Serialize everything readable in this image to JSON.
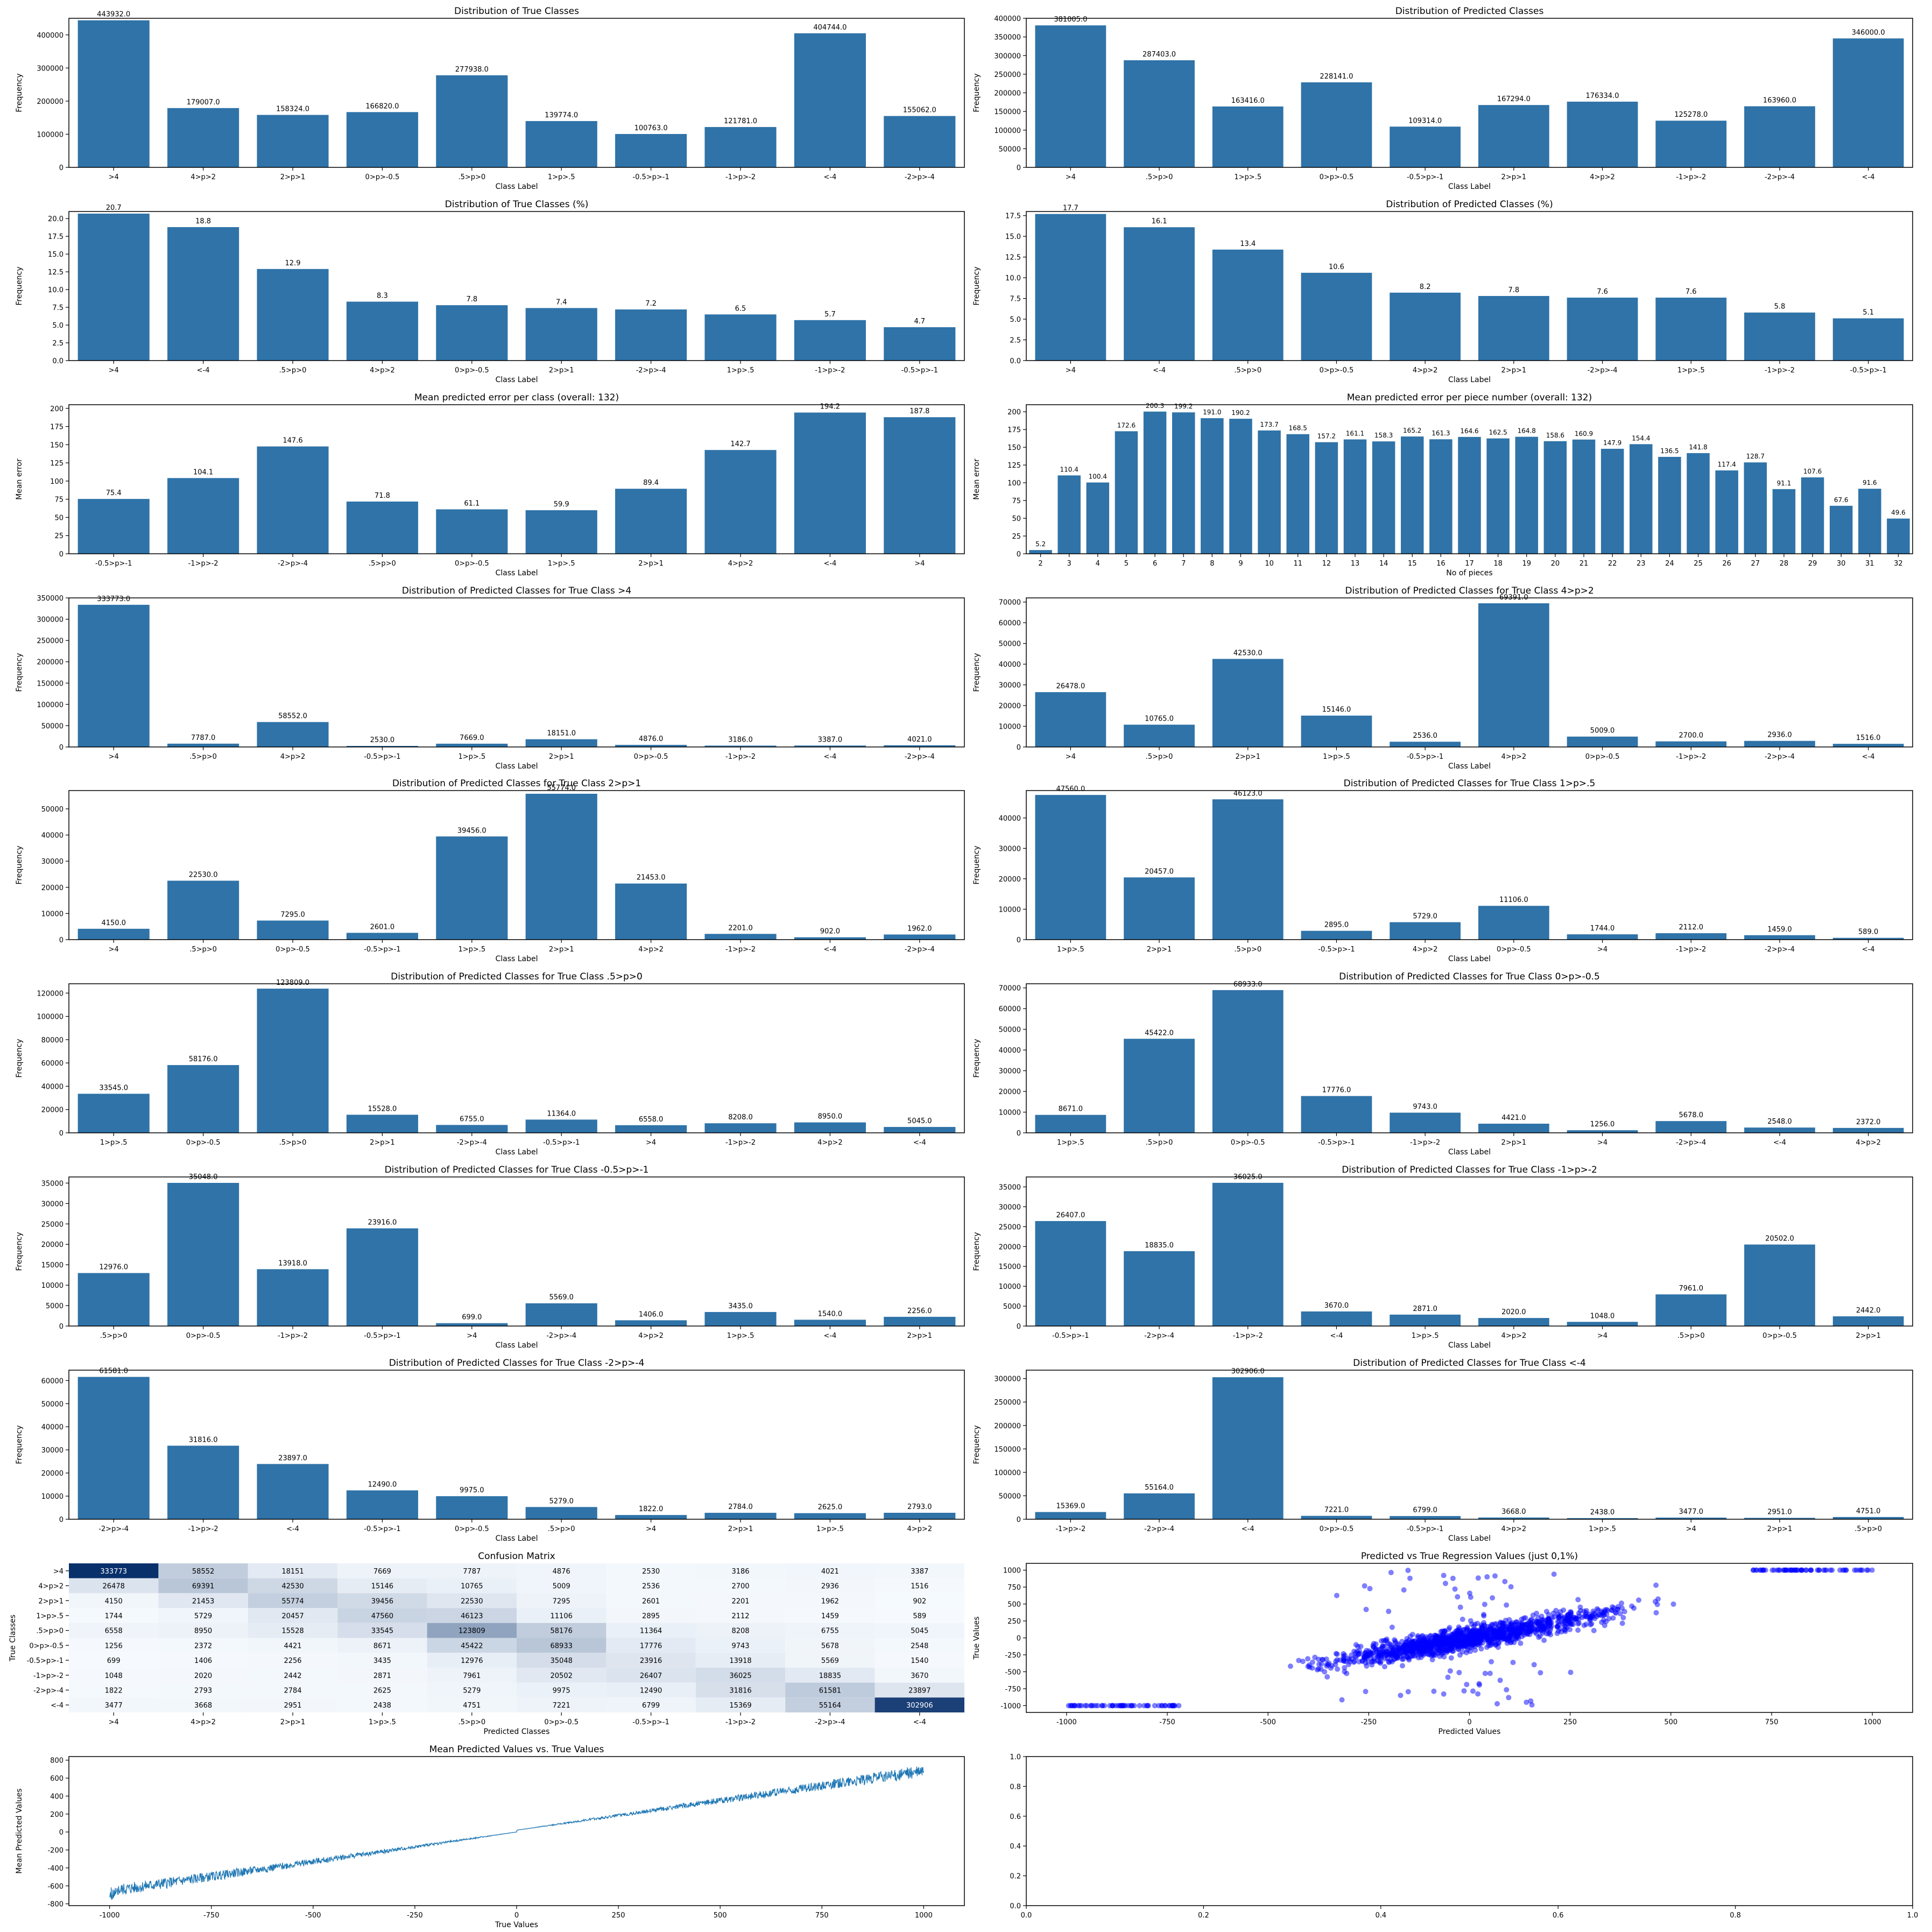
{
  "style": {
    "bar_color": "#2f73a8",
    "line_color": "#1f77b4",
    "scatter_color": "#0000ff",
    "heat_low": "#f7fbff",
    "heat_high": "#08306b"
  },
  "chart_data": [
    {
      "id": "c1",
      "type": "bar",
      "title": "Distribution of True Classes",
      "xlabel": "Class Label",
      "ylabel": "Frequency",
      "categories": [
        ">4",
        "4>p>2",
        "2>p>1",
        "0>p>-0.5",
        ".5>p>0",
        "1>p>.5",
        "-0.5>p>-1",
        "-1>p>-2",
        "<-4",
        "-2>p>-4"
      ],
      "values": [
        443932,
        179007,
        158324,
        166820,
        277938,
        139774,
        100763,
        121781,
        404744,
        155062
      ],
      "ylim": [
        0,
        450000
      ],
      "yticks": [
        0,
        100000,
        200000,
        300000,
        400000
      ],
      "value_labels": "dec"
    },
    {
      "id": "c2",
      "type": "bar",
      "title": "Distribution of Predicted Classes",
      "xlabel": "Class Label",
      "ylabel": "Frequency",
      "categories": [
        ">4",
        ".5>p>0",
        "1>p>.5",
        "0>p>-0.5",
        "-0.5>p>-1",
        "2>p>1",
        "4>p>2",
        "-1>p>-2",
        "-2>p>-4",
        "<-4"
      ],
      "values": [
        381005,
        287403,
        163416,
        228141,
        109314,
        167294,
        176334,
        125278,
        163960,
        346000
      ],
      "ylim": [
        0,
        400000
      ],
      "yticks": [
        0,
        50000,
        100000,
        150000,
        200000,
        250000,
        300000,
        350000,
        400000
      ],
      "value_labels": "dec"
    },
    {
      "id": "c3",
      "type": "bar",
      "title": "Distribution of True Classes (%)",
      "xlabel": "Class Label",
      "ylabel": "Frequency",
      "categories": [
        ">4",
        "<-4",
        ".5>p>0",
        "4>p>2",
        "0>p>-0.5",
        "2>p>1",
        "-2>p>-4",
        "1>p>.5",
        "-1>p>-2",
        "-0.5>p>-1"
      ],
      "values": [
        20.7,
        18.8,
        12.9,
        8.3,
        7.8,
        7.4,
        7.2,
        6.5,
        5.7,
        4.7
      ],
      "ylim": [
        0,
        21
      ],
      "yticks": [
        0.0,
        2.5,
        5.0,
        7.5,
        10.0,
        12.5,
        15.0,
        17.5,
        20.0
      ],
      "value_labels": "one"
    },
    {
      "id": "c4",
      "type": "bar",
      "title": "Distribution of Predicted Classes (%)",
      "xlabel": "Class Label",
      "ylabel": "Frequency",
      "categories": [
        ">4",
        "<-4",
        ".5>p>0",
        "0>p>-0.5",
        "4>p>2",
        "2>p>1",
        "-2>p>-4",
        "1>p>.5",
        "-1>p>-2",
        "-0.5>p>-1"
      ],
      "values": [
        17.7,
        16.1,
        13.4,
        10.6,
        8.2,
        7.8,
        7.6,
        7.6,
        5.8,
        5.1
      ],
      "ylim": [
        0,
        18
      ],
      "yticks": [
        0.0,
        2.5,
        5.0,
        7.5,
        10.0,
        12.5,
        15.0,
        17.5
      ],
      "value_labels": "one"
    },
    {
      "id": "c5",
      "type": "bar",
      "title": "Mean predicted error per class (overall: 132)",
      "xlabel": "Class Label",
      "ylabel": "Mean error",
      "categories": [
        "-0.5>p>-1",
        "-1>p>-2",
        "-2>p>-4",
        ".5>p>0",
        "0>p>-0.5",
        "1>p>.5",
        "2>p>1",
        "4>p>2",
        "<-4",
        ">4"
      ],
      "values": [
        75.4,
        104.1,
        147.6,
        71.8,
        61.1,
        59.9,
        89.4,
        142.7,
        194.2,
        187.8
      ],
      "ylim": [
        0,
        205
      ],
      "yticks": [
        0,
        25,
        50,
        75,
        100,
        125,
        150,
        175,
        200
      ],
      "value_labels": "one"
    },
    {
      "id": "c6",
      "type": "bar",
      "title": "Mean predicted error per piece number (overall: 132)",
      "xlabel": "No of pieces",
      "ylabel": "Mean error",
      "categories": [
        "2",
        "3",
        "4",
        "5",
        "6",
        "7",
        "8",
        "9",
        "10",
        "11",
        "12",
        "13",
        "14",
        "15",
        "16",
        "17",
        "18",
        "19",
        "20",
        "21",
        "22",
        "23",
        "24",
        "25",
        "26",
        "27",
        "28",
        "29",
        "30",
        "31",
        "32"
      ],
      "values": [
        5.2,
        110.4,
        100.4,
        172.6,
        200.3,
        199.2,
        191.0,
        190.2,
        173.7,
        168.5,
        157.2,
        161.1,
        158.3,
        165.2,
        161.3,
        164.6,
        162.5,
        164.8,
        158.6,
        160.9,
        147.9,
        154.4,
        136.5,
        141.8,
        117.4,
        128.7,
        91.1,
        107.6,
        67.6,
        91.6,
        49.6
      ],
      "ylim": [
        0,
        210
      ],
      "yticks": [
        0,
        25,
        50,
        75,
        100,
        125,
        150,
        175,
        200
      ],
      "value_labels": "one"
    },
    {
      "id": "c7",
      "type": "bar",
      "title": "Distribution of Predicted Classes for True Class >4",
      "xlabel": "Class Label",
      "ylabel": "Frequency",
      "categories": [
        ">4",
        ".5>p>0",
        "4>p>2",
        "-0.5>p>-1",
        "1>p>.5",
        "2>p>1",
        "0>p>-0.5",
        "-1>p>-2",
        "<-4",
        "-2>p>-4"
      ],
      "values": [
        333773,
        7787,
        58552,
        2530,
        7669,
        18151,
        4876,
        3186,
        3387,
        4021
      ],
      "ylim": [
        0,
        350000
      ],
      "yticks": [
        0,
        50000,
        100000,
        150000,
        200000,
        250000,
        300000,
        350000
      ],
      "value_labels": "dec"
    },
    {
      "id": "c8",
      "type": "bar",
      "title": "Distribution of Predicted Classes for True Class 4>p>2",
      "xlabel": "Class Label",
      "ylabel": "Frequency",
      "categories": [
        ">4",
        ".5>p>0",
        "2>p>1",
        "1>p>.5",
        "-0.5>p>-1",
        "4>p>2",
        "0>p>-0.5",
        "-1>p>-2",
        "-2>p>-4",
        "<-4"
      ],
      "values": [
        26478,
        10765,
        42530,
        15146,
        2536,
        69391,
        5009,
        2700,
        2936,
        1516
      ],
      "ylim": [
        0,
        72000
      ],
      "yticks": [
        0,
        10000,
        20000,
        30000,
        40000,
        50000,
        60000,
        70000
      ],
      "value_labels": "dec"
    },
    {
      "id": "c9",
      "type": "bar",
      "title": "Distribution of Predicted Classes for True Class 2>p>1",
      "xlabel": "Class Label",
      "ylabel": "Frequency",
      "categories": [
        ">4",
        ".5>p>0",
        "0>p>-0.5",
        "-0.5>p>-1",
        "1>p>.5",
        "2>p>1",
        "4>p>2",
        "-1>p>-2",
        "<-4",
        "-2>p>-4"
      ],
      "values": [
        4150,
        22530,
        7295,
        2601,
        39456,
        55774,
        21453,
        2201,
        902,
        1962
      ],
      "ylim": [
        0,
        57000
      ],
      "yticks": [
        0,
        10000,
        20000,
        30000,
        40000,
        50000
      ],
      "value_labels": "dec"
    },
    {
      "id": "c10",
      "type": "bar",
      "title": "Distribution of Predicted Classes for True Class 1>p>.5",
      "xlabel": "Class Label",
      "ylabel": "Frequency",
      "categories": [
        "1>p>.5",
        "2>p>1",
        ".5>p>0",
        "-0.5>p>-1",
        "4>p>2",
        "0>p>-0.5",
        ">4",
        "-1>p>-2",
        "-2>p>-4",
        "<-4"
      ],
      "values": [
        47560,
        20457,
        46123,
        2895,
        5729,
        11106,
        1744,
        2112,
        1459,
        589
      ],
      "ylim": [
        0,
        49000
      ],
      "yticks": [
        0,
        10000,
        20000,
        30000,
        40000
      ],
      "value_labels": "dec"
    },
    {
      "id": "c11",
      "type": "bar",
      "title": "Distribution of Predicted Classes for True Class .5>p>0",
      "xlabel": "Class Label",
      "ylabel": "Frequency",
      "categories": [
        "1>p>.5",
        "0>p>-0.5",
        ".5>p>0",
        "2>p>1",
        "-2>p>-4",
        "-0.5>p>-1",
        ">4",
        "-1>p>-2",
        "4>p>2",
        "<-4"
      ],
      "values": [
        33545,
        58176,
        123809,
        15528,
        6755,
        11364,
        6558,
        8208,
        8950,
        5045
      ],
      "ylim": [
        0,
        128000
      ],
      "yticks": [
        0,
        20000,
        40000,
        60000,
        80000,
        100000,
        120000
      ],
      "value_labels": "dec"
    },
    {
      "id": "c12",
      "type": "bar",
      "title": "Distribution of Predicted Classes for True Class 0>p>-0.5",
      "xlabel": "Class Label",
      "ylabel": "Frequency",
      "categories": [
        "1>p>.5",
        ".5>p>0",
        "0>p>-0.5",
        "-0.5>p>-1",
        "-1>p>-2",
        "2>p>1",
        ">4",
        "-2>p>-4",
        "<-4",
        "4>p>2"
      ],
      "values": [
        8671,
        45422,
        68933,
        17776,
        9743,
        4421,
        1256,
        5678,
        2548,
        2372
      ],
      "ylim": [
        0,
        72000
      ],
      "yticks": [
        0,
        10000,
        20000,
        30000,
        40000,
        50000,
        60000,
        70000
      ],
      "value_labels": "dec"
    },
    {
      "id": "c13",
      "type": "bar",
      "title": "Distribution of Predicted Classes for True Class -0.5>p>-1",
      "xlabel": "Class Label",
      "ylabel": "Frequency",
      "categories": [
        ".5>p>0",
        "0>p>-0.5",
        "-1>p>-2",
        "-0.5>p>-1",
        ">4",
        "-2>p>-4",
        "4>p>2",
        "1>p>.5",
        "<-4",
        "2>p>1"
      ],
      "values": [
        12976,
        35048,
        13918,
        23916,
        699,
        5569,
        1406,
        3435,
        1540,
        2256
      ],
      "ylim": [
        0,
        36500
      ],
      "yticks": [
        0,
        5000,
        10000,
        15000,
        20000,
        25000,
        30000,
        35000
      ],
      "value_labels": "dec"
    },
    {
      "id": "c14",
      "type": "bar",
      "title": "Distribution of Predicted Classes for True Class -1>p>-2",
      "xlabel": "Class Label",
      "ylabel": "Frequency",
      "categories": [
        "-0.5>p>-1",
        "-2>p>-4",
        "-1>p>-2",
        "<-4",
        "1>p>.5",
        "4>p>2",
        ">4",
        ".5>p>0",
        "0>p>-0.5",
        "2>p>1"
      ],
      "values": [
        26407,
        18835,
        36025,
        3670,
        2871,
        2020,
        1048,
        7961,
        20502,
        2442
      ],
      "ylim": [
        0,
        37500
      ],
      "yticks": [
        0,
        5000,
        10000,
        15000,
        20000,
        25000,
        30000,
        35000
      ],
      "value_labels": "dec"
    },
    {
      "id": "c15",
      "type": "bar",
      "title": "Distribution of Predicted Classes for True Class -2>p>-4",
      "xlabel": "Class Label",
      "ylabel": "Frequency",
      "categories": [
        "-2>p>-4",
        "-1>p>-2",
        "<-4",
        "-0.5>p>-1",
        "0>p>-0.5",
        ".5>p>0",
        ">4",
        "2>p>1",
        "1>p>.5",
        "4>p>2"
      ],
      "values": [
        61581,
        31816,
        23897,
        12490,
        9975,
        5279,
        1822,
        2784,
        2625,
        2793
      ],
      "ylim": [
        0,
        64500
      ],
      "yticks": [
        0,
        10000,
        20000,
        30000,
        40000,
        50000,
        60000
      ],
      "value_labels": "dec"
    },
    {
      "id": "c16",
      "type": "bar",
      "title": "Distribution of Predicted Classes for True Class <-4",
      "xlabel": "Class Label",
      "ylabel": "Frequency",
      "categories": [
        "-1>p>-2",
        "-2>p>-4",
        "<-4",
        "0>p>-0.5",
        "-0.5>p>-1",
        "4>p>2",
        "1>p>.5",
        ">4",
        "2>p>1",
        ".5>p>0"
      ],
      "values": [
        15369,
        55164,
        302906,
        7221,
        6799,
        3668,
        2438,
        3477,
        2951,
        4751
      ],
      "ylim": [
        0,
        318000
      ],
      "yticks": [
        0,
        50000,
        100000,
        150000,
        200000,
        250000,
        300000
      ],
      "value_labels": "dec"
    },
    {
      "id": "c17",
      "type": "heatmap",
      "title": "Confusion Matrix",
      "xlabel": "Predicted Classes",
      "ylabel": "True Classes",
      "labels": [
        ">4",
        "4>p>2",
        "2>p>1",
        "1>p>.5",
        ".5>p>0",
        "0>p>-0.5",
        "-0.5>p>-1",
        "-1>p>-2",
        "-2>p>-4",
        "<-4"
      ],
      "matrix": [
        [
          333773,
          58552,
          18151,
          7669,
          7787,
          4876,
          2530,
          3186,
          4021,
          3387
        ],
        [
          26478,
          69391,
          42530,
          15146,
          10765,
          5009,
          2536,
          2700,
          2936,
          1516
        ],
        [
          4150,
          21453,
          55774,
          39456,
          22530,
          7295,
          2601,
          2201,
          1962,
          902
        ],
        [
          1744,
          5729,
          20457,
          47560,
          46123,
          11106,
          2895,
          2112,
          1459,
          589
        ],
        [
          6558,
          8950,
          15528,
          33545,
          123809,
          58176,
          11364,
          8208,
          6755,
          5045
        ],
        [
          1256,
          2372,
          4421,
          8671,
          45422,
          68933,
          17776,
          9743,
          5678,
          2548
        ],
        [
          699,
          1406,
          2256,
          3435,
          12976,
          35048,
          23916,
          13918,
          5569,
          1540
        ],
        [
          1048,
          2020,
          2442,
          2871,
          7961,
          20502,
          26407,
          36025,
          18835,
          3670
        ],
        [
          1822,
          2793,
          2784,
          2625,
          5279,
          9975,
          12490,
          31816,
          61581,
          23897
        ],
        [
          3477,
          3668,
          2951,
          2438,
          4751,
          7221,
          6799,
          15369,
          55164,
          302906
        ]
      ]
    },
    {
      "id": "c18",
      "type": "scatter",
      "title": "Predicted vs True Regression Values (just 0,1%)",
      "xlabel": "Predicted Values",
      "ylabel": "True Values",
      "xlim": [
        -1100,
        1100
      ],
      "ylim": [
        -1100,
        1100
      ],
      "xticks": [
        -1000,
        -750,
        -500,
        -250,
        0,
        250,
        500,
        750,
        1000
      ],
      "yticks": [
        -1000,
        -750,
        -500,
        -250,
        0,
        250,
        500,
        750,
        1000
      ],
      "n_points": 1400
    },
    {
      "id": "c19",
      "type": "line",
      "title": "Mean Predicted Values vs. True Values",
      "xlabel": "True Values",
      "ylabel": "Mean Predicted Values",
      "xlim": [
        -1100,
        1100
      ],
      "ylim": [
        -820,
        840
      ],
      "xticks": [
        -1000,
        -750,
        -500,
        -250,
        0,
        250,
        500,
        750,
        1000
      ],
      "yticks": [
        -800,
        -600,
        -400,
        -200,
        0,
        200,
        400,
        600,
        800
      ],
      "x_range": [
        -1000,
        1000
      ]
    },
    {
      "id": "c20",
      "type": "empty",
      "title": "",
      "xlim": [
        0,
        1
      ],
      "ylim": [
        0,
        1
      ],
      "xticks": [
        0.0,
        0.2,
        0.4,
        0.6,
        0.8,
        1.0
      ],
      "yticks": [
        0.0,
        0.2,
        0.4,
        0.6,
        0.8,
        1.0
      ]
    }
  ]
}
